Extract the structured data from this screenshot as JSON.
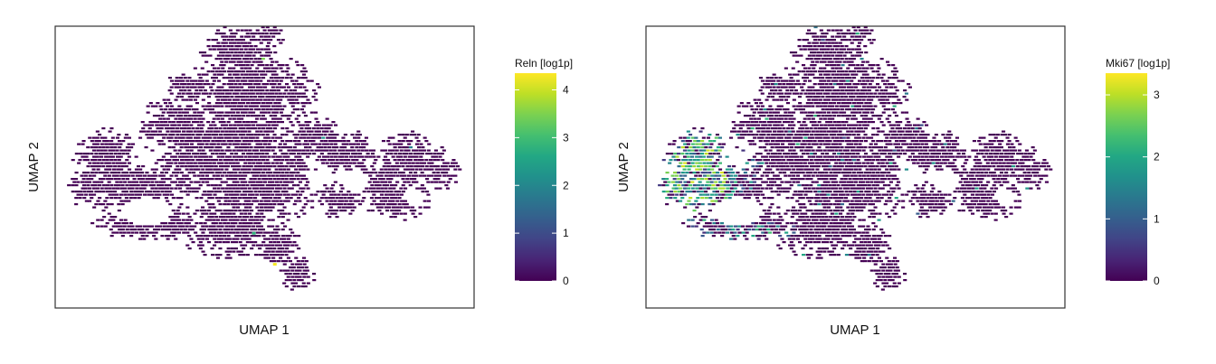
{
  "panels": [
    {
      "xlabel": "UMAP 1",
      "ylabel": "UMAP 2",
      "colorbar": {
        "title": "Reln [log1p]",
        "ticks": [
          "0",
          "1",
          "2",
          "3",
          "4"
        ],
        "tick_values": [
          0,
          1,
          2,
          3,
          4
        ],
        "min": 0,
        "max": 4.35
      }
    },
    {
      "xlabel": "UMAP 1",
      "ylabel": "UMAP 2",
      "colorbar": {
        "title": "Mki67 [log1p]",
        "ticks": [
          "0",
          "1",
          "2",
          "3"
        ],
        "tick_values": [
          0,
          1,
          2,
          3
        ],
        "min": 0,
        "max": 3.35
      }
    }
  ],
  "chart_data": [
    {
      "type": "heatmap",
      "title": "",
      "xlabel": "UMAP 1",
      "ylabel": "UMAP 2",
      "color_variable": "Reln [log1p]",
      "color_range": [
        0,
        4.35
      ],
      "colormap": "viridis",
      "grid": false,
      "legend": "right colorbar",
      "description": "Hexbin-style UMAP embedding of cells colored by Reln expression; nearly all bins at 0 (dark purple), a few isolated high values.",
      "highlights": [
        {
          "region": "lower-center single bin",
          "value": 4.3
        },
        {
          "region": "center-lower single bin",
          "value": 2.8
        }
      ]
    },
    {
      "type": "heatmap",
      "title": "",
      "xlabel": "UMAP 1",
      "ylabel": "UMAP 2",
      "color_variable": "Mki67 [log1p]",
      "color_range": [
        0,
        3.35
      ],
      "colormap": "viridis",
      "grid": false,
      "legend": "right colorbar",
      "description": "Same UMAP embedding colored by Mki67 expression; elevated values (1.5-3.2) concentrated in the left lobe of the embedding, rest near 0.",
      "highlights": [
        {
          "region": "left lobe outer edge",
          "value": 3.0
        },
        {
          "region": "left lobe upper arm",
          "value": 2.0
        },
        {
          "region": "left-center bottom arm",
          "value": 1.5
        }
      ]
    }
  ],
  "colors": {
    "viridis": [
      "#440154",
      "#482475",
      "#414487",
      "#355f8d",
      "#2a788e",
      "#21918c",
      "#22a884",
      "#44bf70",
      "#7ad151",
      "#bddf26",
      "#fde725"
    ],
    "frame": "#333333"
  }
}
